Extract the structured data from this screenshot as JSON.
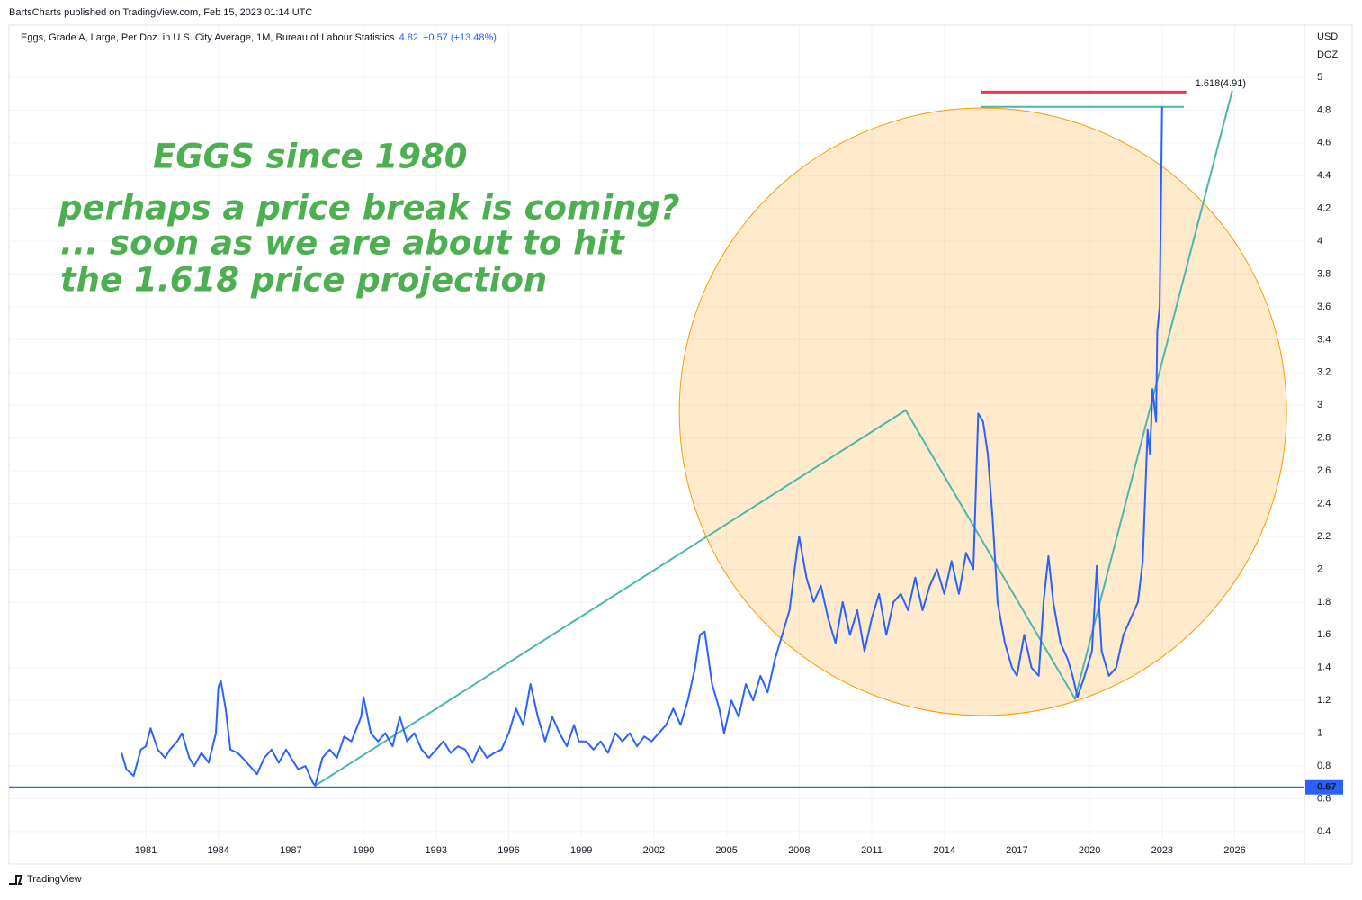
{
  "header": "BartsCharts published on TradingView.com, Feb 15, 2023 01:14 UTC",
  "footer": "TradingView",
  "chart_data": {
    "type": "line",
    "annotations": [
      "EGGS since 1980",
      "perhaps a price break is coming?",
      "... soon as we are about to hit",
      "the 1.618 price projection"
    ],
    "last_value": 4.82,
    "change_label": "+0.57 (+13.48%)",
    "y_unit": [
      "USD",
      "DOZ"
    ],
    "x": [
      1980.0,
      1980.2,
      1980.5,
      1980.8,
      1981.0,
      1981.2,
      1981.5,
      1981.8,
      1982.0,
      1982.3,
      1982.5,
      1982.8,
      1983.0,
      1983.3,
      1983.6,
      1983.9,
      1984.0,
      1984.1,
      1984.3,
      1984.5,
      1984.8,
      1985.0,
      1985.3,
      1985.6,
      1985.9,
      1986.2,
      1986.5,
      1986.8,
      1987.0,
      1987.3,
      1987.6,
      1987.9,
      1988.0,
      1988.3,
      1988.6,
      1988.9,
      1989.2,
      1989.5,
      1989.9,
      1990.0,
      1990.3,
      1990.6,
      1990.9,
      1991.2,
      1991.5,
      1991.8,
      1992.1,
      1992.4,
      1992.7,
      1993.0,
      1993.3,
      1993.6,
      1993.9,
      1994.2,
      1994.5,
      1994.8,
      1995.1,
      1995.4,
      1995.7,
      1996.0,
      1996.3,
      1996.6,
      1996.9,
      1997.2,
      1997.5,
      1997.8,
      1998.1,
      1998.4,
      1998.7,
      1998.9,
      1999.2,
      1999.5,
      1999.8,
      2000.1,
      2000.4,
      2000.7,
      2001.0,
      2001.3,
      2001.6,
      2001.9,
      2002.2,
      2002.5,
      2002.8,
      2003.1,
      2003.4,
      2003.7,
      2003.9,
      2004.1,
      2004.4,
      2004.7,
      2004.9,
      2005.2,
      2005.5,
      2005.8,
      2006.1,
      2006.4,
      2006.7,
      2007.0,
      2007.3,
      2007.6,
      2007.9,
      2008.0,
      2008.3,
      2008.6,
      2008.9,
      2009.2,
      2009.5,
      2009.8,
      2010.1,
      2010.4,
      2010.7,
      2011.0,
      2011.3,
      2011.6,
      2011.9,
      2012.2,
      2012.5,
      2012.8,
      2013.1,
      2013.4,
      2013.7,
      2014.0,
      2014.3,
      2014.6,
      2014.9,
      2015.2,
      2015.4,
      2015.6,
      2015.8,
      2016.0,
      2016.2,
      2016.5,
      2016.8,
      2017.0,
      2017.3,
      2017.6,
      2017.9,
      2018.1,
      2018.3,
      2018.5,
      2018.8,
      2019.1,
      2019.3,
      2019.5,
      2019.8,
      2020.1,
      2020.3,
      2020.5,
      2020.8,
      2021.1,
      2021.4,
      2021.7,
      2022.0,
      2022.2,
      2022.4,
      2022.5,
      2022.6,
      2022.75,
      2022.8,
      2022.9,
      2023.0
    ],
    "series": [
      {
        "name": "Eggs, Grade A, Large, Per Doz. in U.S. City Average, 1M, Bureau of Labour Statistics",
        "color": "#2962ff",
        "values": [
          0.88,
          0.78,
          0.74,
          0.9,
          0.92,
          1.03,
          0.9,
          0.85,
          0.9,
          0.95,
          1.0,
          0.85,
          0.8,
          0.88,
          0.82,
          1.0,
          1.28,
          1.32,
          1.15,
          0.9,
          0.88,
          0.85,
          0.8,
          0.75,
          0.85,
          0.9,
          0.82,
          0.9,
          0.85,
          0.78,
          0.8,
          0.7,
          0.68,
          0.85,
          0.9,
          0.85,
          0.98,
          0.95,
          1.1,
          1.22,
          1.0,
          0.95,
          1.0,
          0.92,
          1.1,
          0.95,
          1.0,
          0.9,
          0.85,
          0.9,
          0.95,
          0.88,
          0.92,
          0.9,
          0.82,
          0.92,
          0.85,
          0.88,
          0.9,
          1.0,
          1.15,
          1.05,
          1.3,
          1.1,
          0.95,
          1.1,
          1.0,
          0.92,
          1.05,
          0.95,
          0.95,
          0.9,
          0.95,
          0.88,
          1.0,
          0.95,
          1.0,
          0.92,
          0.98,
          0.95,
          1.0,
          1.05,
          1.15,
          1.05,
          1.2,
          1.4,
          1.6,
          1.62,
          1.3,
          1.15,
          1.0,
          1.2,
          1.1,
          1.3,
          1.2,
          1.35,
          1.25,
          1.45,
          1.6,
          1.75,
          2.1,
          2.2,
          1.95,
          1.8,
          1.9,
          1.7,
          1.55,
          1.8,
          1.6,
          1.75,
          1.5,
          1.7,
          1.85,
          1.6,
          1.8,
          1.85,
          1.75,
          1.95,
          1.75,
          1.9,
          2.0,
          1.85,
          2.05,
          1.85,
          2.1,
          2.0,
          2.95,
          2.9,
          2.7,
          2.3,
          1.8,
          1.55,
          1.4,
          1.35,
          1.6,
          1.4,
          1.35,
          1.8,
          2.08,
          1.8,
          1.55,
          1.45,
          1.35,
          1.22,
          1.35,
          1.5,
          2.02,
          1.5,
          1.35,
          1.4,
          1.6,
          1.7,
          1.8,
          2.05,
          2.85,
          2.7,
          3.1,
          2.9,
          3.45,
          3.6,
          4.82
        ]
      }
    ],
    "xlim": [
      1975.35,
      2028.88
    ],
    "ylim": [
      0.202,
      5.318
    ],
    "xticks": [
      1981,
      1984,
      1987,
      1990,
      1993,
      1996,
      1999,
      2002,
      2005,
      2008,
      2011,
      2014,
      2017,
      2020,
      2023,
      2026
    ],
    "yticks": [
      0.4,
      0.6,
      0.8,
      1,
      1.2,
      1.4,
      1.6,
      1.8,
      2,
      2.2,
      2.4,
      2.6,
      2.8,
      3,
      3.2,
      3.4,
      3.6,
      3.8,
      4,
      4.2,
      4.4,
      4.6,
      4.8,
      5
    ],
    "grid": true,
    "price_line": {
      "value": 0.67,
      "color": "#2962ff"
    },
    "circle": {
      "x": [
        2003.05,
        2028.14
      ],
      "y": [
        1.108,
        4.813
      ],
      "color": "#ff9800"
    },
    "trend": {
      "x": [
        1988.0,
        2012.4,
        2019.4,
        2025.9
      ],
      "y": [
        0.68,
        2.97,
        1.21,
        4.92
      ],
      "color": "#4db6ac"
    },
    "level_line": {
      "x": [
        2015.5,
        2023.9
      ],
      "value": 4.82,
      "color": "#4db6ac"
    },
    "fib_level": {
      "x": [
        2015.5,
        2024.0
      ],
      "value": 4.91,
      "label": "1.618(4.91)",
      "color": "#f23645"
    }
  }
}
